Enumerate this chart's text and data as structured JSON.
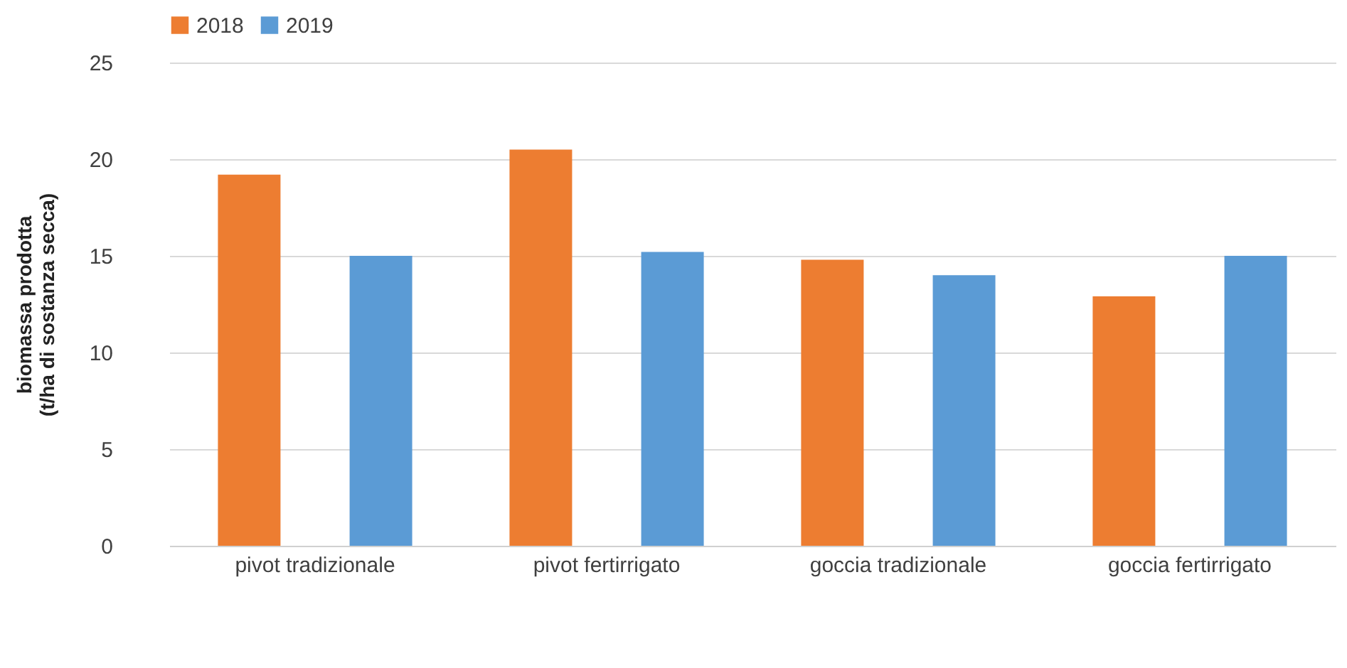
{
  "chart_data": {
    "type": "bar",
    "ylabel": "biomassa prodotta\n(t/ha di sostanza secca)",
    "categories": [
      "pivot tradizionale",
      "pivot fertirrigato",
      "goccia tradizionale",
      "goccia fertirrigato"
    ],
    "series": [
      {
        "name": "2018",
        "color": "#ed7d31",
        "values": [
          19.2,
          20.5,
          14.8,
          12.9
        ]
      },
      {
        "name": "2019",
        "color": "#5b9bd5",
        "values": [
          15.0,
          15.2,
          14.0,
          15.0
        ]
      }
    ],
    "ylim": [
      0,
      25
    ],
    "yticks": [
      0,
      5,
      10,
      15,
      20,
      25
    ],
    "grid": "y",
    "legend": "top"
  }
}
